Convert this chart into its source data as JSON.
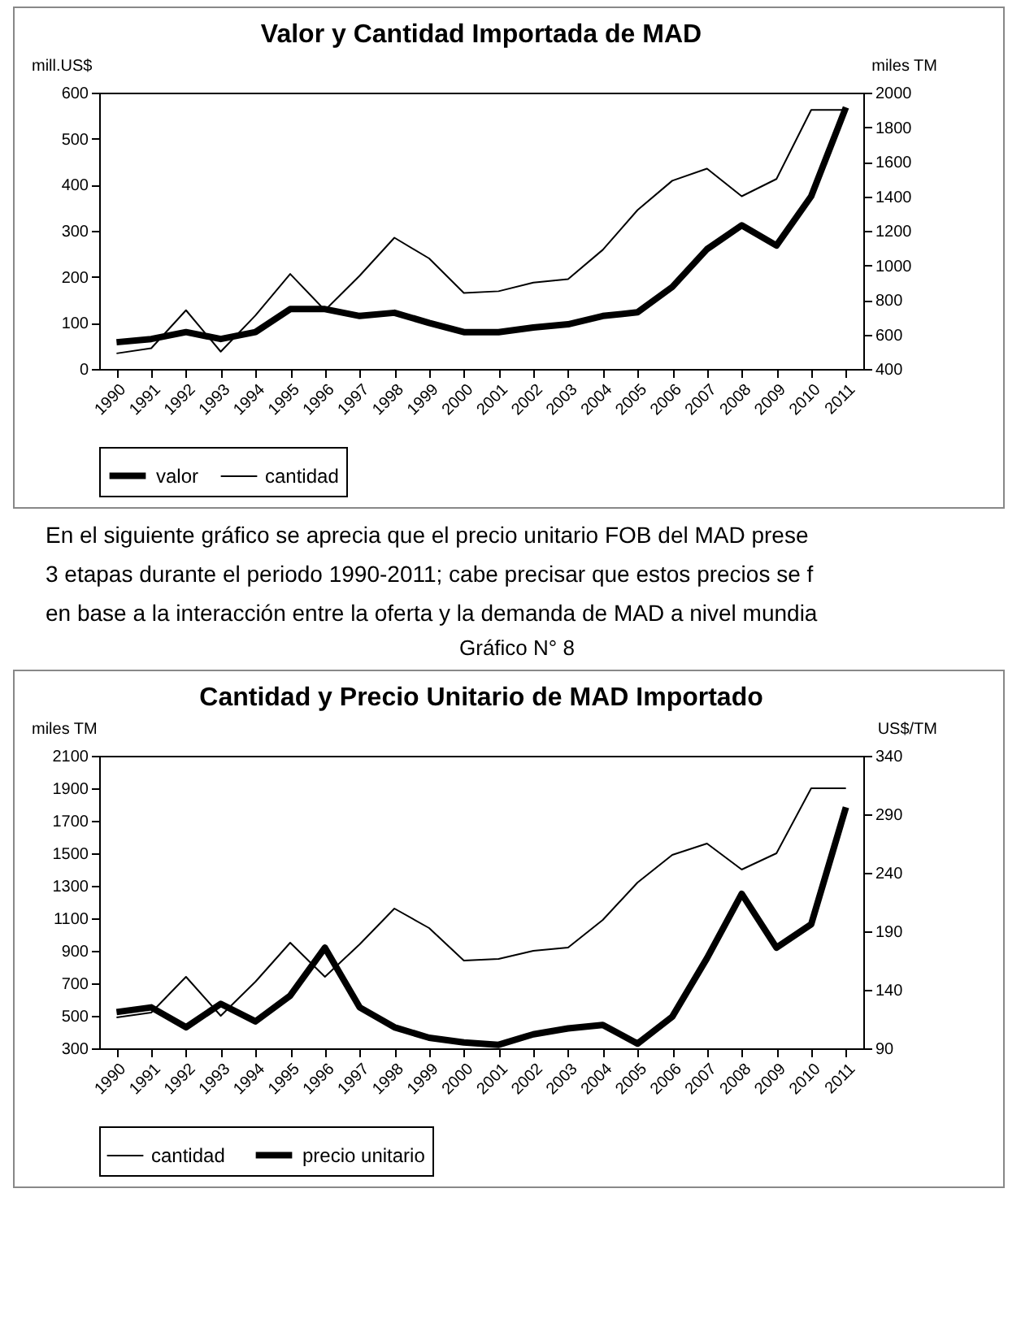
{
  "chart_data": [
    {
      "type": "line",
      "title": "Valor y Cantidad Importada de MAD",
      "ylabel": "mill.US$",
      "y2label": "miles TM",
      "categories": [
        "1990",
        "1991",
        "1992",
        "1993",
        "1994",
        "1995",
        "1996",
        "1997",
        "1998",
        "1999",
        "2000",
        "2001",
        "2002",
        "2003",
        "2004",
        "2005",
        "2006",
        "2007",
        "2008",
        "2009",
        "2010",
        "2011"
      ],
      "series": [
        {
          "name": "valor",
          "color": "#000000",
          "values": [
            58,
            65,
            80,
            65,
            80,
            130,
            130,
            115,
            122,
            100,
            80,
            80,
            90,
            97,
            115,
            123,
            178,
            260,
            312,
            268,
            375,
            568
          ]
        },
        {
          "name": "cantidad",
          "color": "#000000",
          "axis": "y2",
          "values": [
            490,
            520,
            740,
            500,
            710,
            950,
            740,
            940,
            1160,
            1040,
            840,
            850,
            900,
            920,
            1090,
            1320,
            1490,
            1560,
            1400,
            1500,
            1900,
            1900
          ]
        }
      ],
      "ylim": [
        0,
        600
      ],
      "yticks": [
        0,
        100,
        200,
        300,
        400,
        500,
        600
      ],
      "y2lim": [
        400,
        2000
      ],
      "y2ticks": [
        400,
        600,
        800,
        1000,
        1200,
        1400,
        1600,
        1800,
        2000
      ],
      "legend": "bottom",
      "annotations": [
        "En el siguiente gráfico se aprecia que el precio unitario FOB del MAD prese",
        "3 etapas durante el periodo 1990-2011; cabe precisar que estos precios se f",
        "en base a la interacción entre la oferta y la demanda de MAD a nivel mundia"
      ]
    },
    {
      "type": "line",
      "title": "Cantidad y Precio Unitario de MAD Importado",
      "ylabel": "miles TM",
      "y2label": "US$/TM",
      "categories": [
        "1990",
        "1991",
        "1992",
        "1993",
        "1994",
        "1995",
        "1996",
        "1997",
        "1998",
        "1999",
        "2000",
        "2001",
        "2002",
        "2003",
        "2004",
        "2005",
        "2006",
        "2007",
        "2008",
        "2009",
        "2010",
        "2011"
      ],
      "series": [
        {
          "name": "cantidad",
          "color": "#000000",
          "values": [
            490,
            520,
            740,
            500,
            710,
            950,
            740,
            940,
            1160,
            1040,
            840,
            850,
            900,
            920,
            1090,
            1320,
            1490,
            1560,
            1400,
            1500,
            1900,
            1900
          ]
        },
        {
          "name": "precio unitario",
          "color": "#000000",
          "axis": "y2",
          "values": [
            121,
            125,
            108,
            128,
            113,
            135,
            176,
            125,
            108,
            99,
            95,
            93,
            102,
            107,
            110,
            94,
            117,
            167,
            222,
            176,
            196,
            296
          ]
        }
      ],
      "ylim": [
        300,
        2100
      ],
      "yticks": [
        300,
        500,
        700,
        900,
        1100,
        1300,
        1500,
        1700,
        1900,
        2100
      ],
      "y2lim": [
        90,
        340
      ],
      "y2ticks": [
        90,
        140,
        190,
        240,
        290,
        340
      ],
      "legend": "bottom",
      "annotations": [
        "Gráfico N° 8"
      ]
    }
  ]
}
